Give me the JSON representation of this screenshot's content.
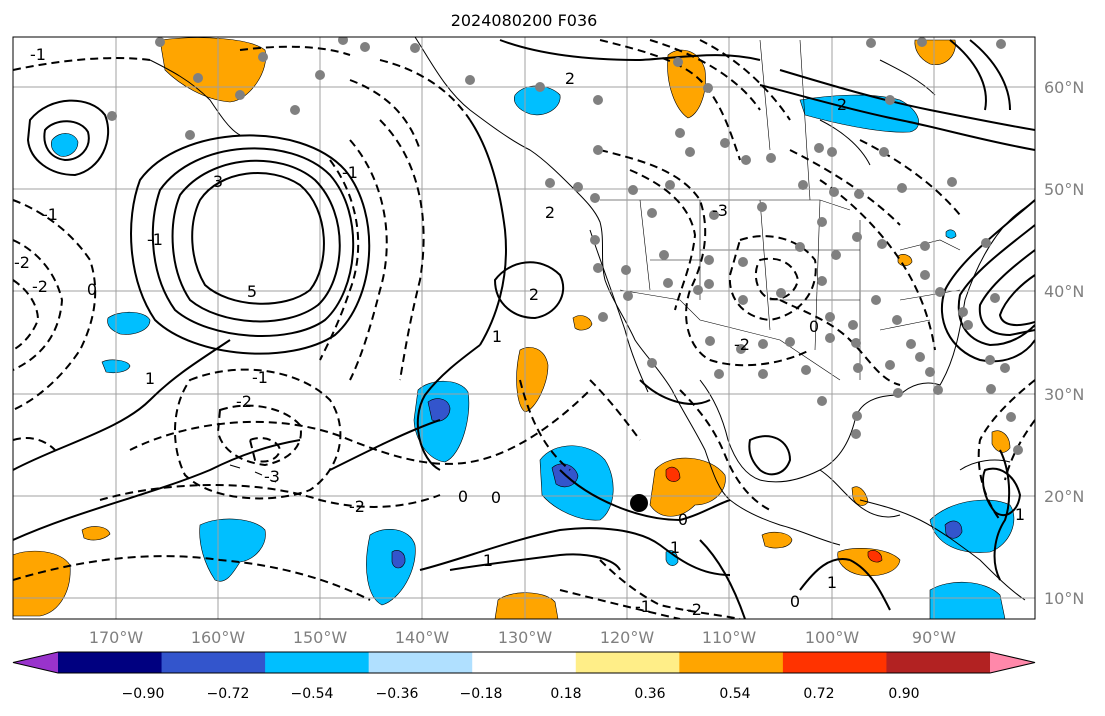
{
  "title": "2024080200 F036",
  "map": {
    "lon_labels": [
      "170°W",
      "160°W",
      "150°W",
      "140°W",
      "130°W",
      "120°W",
      "110°W",
      "100°W",
      "90°W"
    ],
    "lat_labels": [
      "60°N",
      "50°N",
      "40°N",
      "30°N",
      "20°N",
      "10°N"
    ],
    "contour_labels": [
      "-1",
      "2",
      "3",
      "5",
      "-1",
      "-2",
      "-3",
      "-2",
      "2",
      "1",
      "1",
      "0",
      "0",
      "0",
      "-1",
      "-2",
      "1",
      "-2",
      "-1",
      "-2",
      "-1",
      "0",
      "1",
      "-3",
      "-2",
      "1",
      "0",
      "2",
      "-1",
      "0",
      "2",
      "1"
    ],
    "colors": {
      "contour": "#000000",
      "grid": "#a0a0a0",
      "coast": "#000000",
      "station_dot": "#808080",
      "marker": "#000000"
    }
  },
  "colorbar": {
    "tick_labels": [
      "−0.90",
      "−0.72",
      "−0.54",
      "−0.36",
      "−0.18",
      "0.18",
      "0.36",
      "0.54",
      "0.72",
      "0.90"
    ],
    "colors": [
      "#9933cc",
      "#000080",
      "#3355cc",
      "#00bfff",
      "#b0e0ff",
      "#ffffff",
      "#ffee88",
      "#ffa500",
      "#ff3300",
      "#b22222",
      "#ff88aa"
    ]
  }
}
